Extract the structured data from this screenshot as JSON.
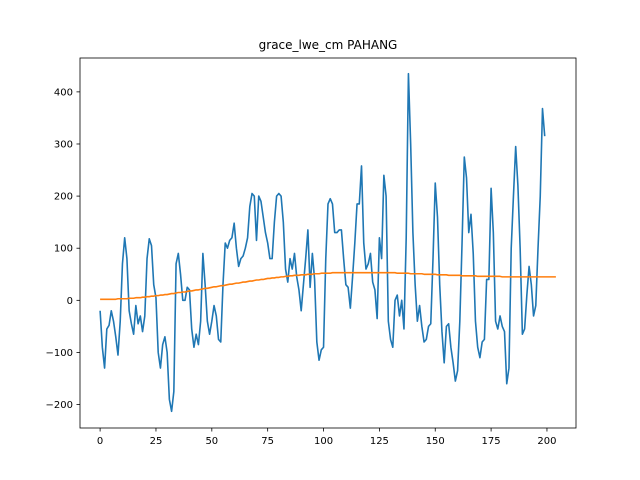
{
  "chart_data": {
    "type": "line",
    "title": "grace_lwe_cm PAHANG",
    "xlabel": "",
    "ylabel": "",
    "xlim": [
      -9,
      213
    ],
    "ylim": [
      -245,
      465
    ],
    "x_ticks": [
      0,
      25,
      50,
      75,
      100,
      125,
      150,
      175,
      200
    ],
    "y_ticks": [
      -200,
      -100,
      0,
      100,
      200,
      300,
      400
    ],
    "grid": false,
    "legend": "none",
    "series": [
      {
        "color": "#1f77b4",
        "values": [
          -20,
          -90,
          -130,
          -55,
          -48,
          -20,
          -40,
          -70,
          -105,
          -40,
          70,
          120,
          80,
          -20,
          -45,
          -65,
          -10,
          -45,
          -30,
          -60,
          -30,
          80,
          118,
          105,
          30,
          5,
          -100,
          -130,
          -85,
          -70,
          -100,
          -190,
          -213,
          -175,
          70,
          90,
          50,
          0,
          0,
          25,
          20,
          -55,
          -90,
          -65,
          -85,
          -40,
          90,
          30,
          -40,
          -65,
          -40,
          -10,
          -30,
          -75,
          -80,
          30,
          110,
          100,
          115,
          120,
          148,
          100,
          65,
          80,
          85,
          100,
          120,
          180,
          205,
          200,
          115,
          200,
          190,
          160,
          130,
          110,
          80,
          80,
          150,
          200,
          205,
          200,
          150,
          60,
          35,
          80,
          60,
          90,
          45,
          20,
          -20,
          30,
          80,
          135,
          25,
          90,
          40,
          -80,
          -115,
          -95,
          -90,
          80,
          185,
          195,
          185,
          130,
          130,
          135,
          135,
          80,
          30,
          25,
          -15,
          45,
          110,
          185,
          185,
          258,
          110,
          60,
          70,
          90,
          35,
          20,
          -35,
          120,
          80,
          240,
          200,
          -40,
          -75,
          -90,
          0,
          10,
          -30,
          0,
          -55,
          120,
          435,
          300,
          130,
          30,
          -40,
          -10,
          -50,
          -80,
          -75,
          -50,
          -45,
          80,
          225,
          160,
          30,
          -60,
          -120,
          -50,
          -45,
          -90,
          -120,
          -155,
          -135,
          -40,
          110,
          275,
          235,
          130,
          165,
          90,
          -40,
          -90,
          -110,
          -80,
          -75,
          40,
          40,
          215,
          130,
          -40,
          -55,
          -30,
          -50,
          -60,
          -160,
          -130,
          100,
          200,
          295,
          220,
          100,
          -65,
          -55,
          10,
          65,
          30,
          -30,
          -10,
          100,
          200,
          368,
          315
        ]
      },
      {
        "color": "#ff7f0e",
        "values": [
          2,
          2,
          2,
          2,
          2,
          2,
          2,
          2,
          3,
          3,
          3,
          3,
          3,
          4,
          4,
          4,
          5,
          5,
          5,
          6,
          6,
          7,
          7,
          8,
          8,
          9,
          9,
          10,
          10,
          11,
          11,
          12,
          13,
          13,
          14,
          15,
          15,
          16,
          16,
          17,
          18,
          18,
          19,
          20,
          20,
          21,
          22,
          23,
          23,
          24,
          25,
          26,
          26,
          27,
          28,
          28,
          29,
          30,
          31,
          31,
          32,
          33,
          33,
          34,
          35,
          35,
          36,
          37,
          37,
          38,
          39,
          39,
          40,
          40,
          41,
          42,
          42,
          43,
          43,
          44,
          44,
          45,
          45,
          46,
          46,
          47,
          47,
          48,
          48,
          48,
          49,
          49,
          49,
          50,
          50,
          50,
          51,
          51,
          51,
          52,
          52,
          52,
          52,
          52,
          53,
          53,
          53,
          53,
          53,
          53,
          53,
          53,
          53,
          53,
          53,
          53,
          53,
          53,
          53,
          53,
          53,
          53,
          53,
          53,
          53,
          53,
          53,
          53,
          53,
          53,
          53,
          53,
          53,
          52,
          52,
          52,
          52,
          52,
          52,
          51,
          51,
          51,
          51,
          51,
          51,
          50,
          50,
          50,
          50,
          50,
          50,
          49,
          49,
          49,
          49,
          49,
          48,
          48,
          48,
          48,
          48,
          48,
          47,
          47,
          47,
          47,
          47,
          47,
          47,
          46,
          46,
          46,
          46,
          46,
          46,
          46,
          46,
          46,
          46,
          46,
          45,
          45,
          45,
          45,
          45,
          45,
          45,
          45,
          45,
          45,
          45,
          45,
          45,
          45,
          45,
          45,
          45,
          45,
          45,
          45,
          45,
          45,
          45,
          45,
          45
        ]
      }
    ]
  }
}
